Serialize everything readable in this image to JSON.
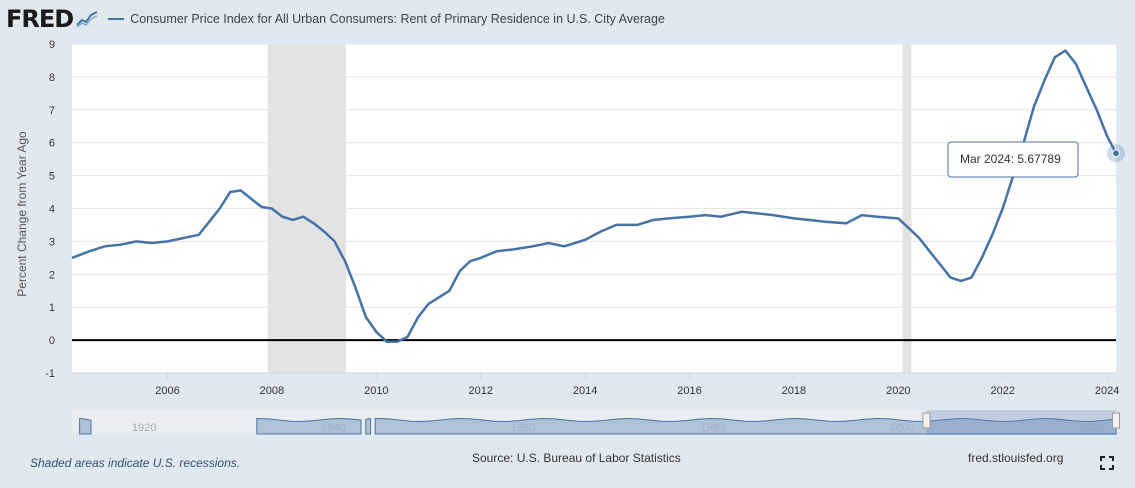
{
  "header": {
    "logo_text": "FRED",
    "logo_icon": "fred-chart-icon",
    "series_title": "Consumer Price Index for All Urban Consumers: Rent of Primary Residence in U.S. City Average"
  },
  "colors": {
    "series": "#4572a7",
    "recession": "#e3e3e3",
    "background": "#e1e9f0",
    "plot_background": "#ffffff",
    "navigator_fill": "#9fb3cc",
    "navigator_line": "#4a72a6"
  },
  "tooltip": {
    "text": "Mar 2024: ",
    "value": "5.67789"
  },
  "footer": {
    "note": "Shaded areas indicate U.S. recessions.",
    "source": "Source: U.S. Bureau of Labor Statistics",
    "site": "fred.stlouisfed.org",
    "fullscreen_icon": "fullscreen-icon"
  },
  "navigator": {
    "labels": [
      "1920",
      "1940",
      "1960",
      "1980",
      "2000",
      "2020"
    ],
    "label_years": [
      1920,
      1940,
      1960,
      1980,
      2000,
      2020
    ],
    "selected_range": [
      2004.17,
      2024.17
    ]
  },
  "chart_data": {
    "type": "line",
    "title": "Consumer Price Index for All Urban Consumers: Rent of Primary Residence in U.S. City Average",
    "xlabel": "",
    "ylabel": "Percent Change from Year Ago",
    "xlim": [
      2004.17,
      2024.17
    ],
    "ylim": [
      -1,
      9
    ],
    "yticks": [
      -1,
      0,
      1,
      2,
      3,
      4,
      5,
      6,
      7,
      8,
      9
    ],
    "xticks": [
      2006,
      2008,
      2010,
      2012,
      2014,
      2016,
      2018,
      2020,
      2022,
      2024
    ],
    "grid": true,
    "recessions": [
      [
        2007.92,
        2009.42
      ],
      [
        2020.08,
        2020.25
      ]
    ],
    "series": [
      {
        "name": "Consumer Price Index for All Urban Consumers: Rent of Primary Residence in U.S. City Average",
        "x": [
          2004.17,
          2004.5,
          2004.8,
          2005.1,
          2005.4,
          2005.7,
          2006.0,
          2006.3,
          2006.6,
          2006.8,
          2007.0,
          2007.2,
          2007.4,
          2007.6,
          2007.8,
          2008.0,
          2008.2,
          2008.4,
          2008.6,
          2008.8,
          2009.0,
          2009.2,
          2009.4,
          2009.6,
          2009.8,
          2010.0,
          2010.2,
          2010.4,
          2010.6,
          2010.8,
          2011.0,
          2011.2,
          2011.4,
          2011.6,
          2011.8,
          2012.0,
          2012.3,
          2012.6,
          2013.0,
          2013.3,
          2013.6,
          2014.0,
          2014.3,
          2014.6,
          2015.0,
          2015.3,
          2015.6,
          2016.0,
          2016.3,
          2016.6,
          2017.0,
          2017.3,
          2017.6,
          2018.0,
          2018.3,
          2018.6,
          2019.0,
          2019.3,
          2019.6,
          2020.0,
          2020.2,
          2020.4,
          2020.6,
          2020.8,
          2021.0,
          2021.2,
          2021.4,
          2021.6,
          2021.8,
          2022.0,
          2022.2,
          2022.4,
          2022.6,
          2022.8,
          2023.0,
          2023.2,
          2023.4,
          2023.6,
          2023.8,
          2024.0,
          2024.17
        ],
        "y": [
          2.5,
          2.7,
          2.85,
          2.9,
          3.0,
          2.95,
          3.0,
          3.1,
          3.2,
          3.6,
          4.0,
          4.5,
          4.55,
          4.3,
          4.05,
          4.0,
          3.75,
          3.65,
          3.75,
          3.55,
          3.3,
          3.0,
          2.4,
          1.6,
          0.7,
          0.25,
          -0.05,
          -0.05,
          0.1,
          0.7,
          1.1,
          1.3,
          1.5,
          2.1,
          2.4,
          2.5,
          2.7,
          2.75,
          2.85,
          2.95,
          2.85,
          3.05,
          3.3,
          3.5,
          3.5,
          3.65,
          3.7,
          3.75,
          3.8,
          3.75,
          3.9,
          3.85,
          3.8,
          3.7,
          3.65,
          3.6,
          3.55,
          3.8,
          3.75,
          3.7,
          3.4,
          3.1,
          2.7,
          2.3,
          1.9,
          1.8,
          1.9,
          2.5,
          3.2,
          4.0,
          5.0,
          6.0,
          7.1,
          7.9,
          8.6,
          8.8,
          8.4,
          7.7,
          7.0,
          6.2,
          5.67789
        ]
      }
    ]
  }
}
